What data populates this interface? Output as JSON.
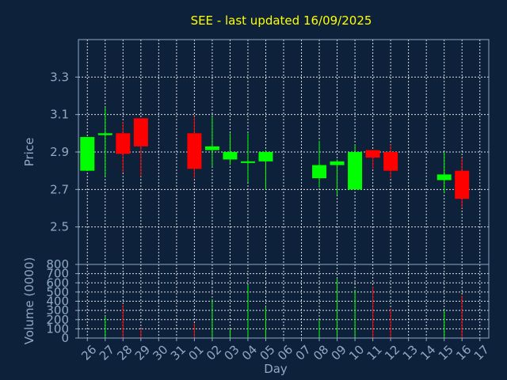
{
  "chart_data": {
    "type": "candlestick",
    "title": "SEE - last updated 16/09/2025",
    "xlabel": "Day",
    "ylabel_price": "Price",
    "ylabel_volume": "Volume (0000)",
    "x_ticks": [
      "26",
      "27",
      "28",
      "29",
      "30",
      "31",
      "01",
      "02",
      "03",
      "04",
      "05",
      "06",
      "07",
      "08",
      "09",
      "10",
      "11",
      "12",
      "13",
      "14",
      "15",
      "16",
      "17"
    ],
    "price_ticks": [
      2.5,
      2.7,
      2.9,
      3.1,
      3.3
    ],
    "price_range": [
      2.3,
      3.5
    ],
    "volume_ticks": [
      0,
      100,
      200,
      300,
      400,
      500,
      600,
      700,
      800
    ],
    "volume_range": [
      0,
      800
    ],
    "grid": true,
    "colors": {
      "up": "#00ff00",
      "down": "#ff0000",
      "title": "#ffff00",
      "axis": "#8fa9c6",
      "background": "#0e213a"
    },
    "candles": [
      {
        "day": "26",
        "open": 2.8,
        "high": 2.98,
        "low": 2.8,
        "close": 2.98,
        "volume": 0
      },
      {
        "day": "27",
        "open": 2.99,
        "high": 3.14,
        "low": 2.77,
        "close": 3.0,
        "volume": 240
      },
      {
        "day": "28",
        "open": 3.0,
        "high": 3.06,
        "low": 2.79,
        "close": 2.89,
        "volume": 360
      },
      {
        "day": "29",
        "open": 3.08,
        "high": 3.08,
        "low": 2.77,
        "close": 2.93,
        "volume": 100
      },
      {
        "day": "01",
        "open": 3.0,
        "high": 3.09,
        "low": 2.76,
        "close": 2.81,
        "volume": 160
      },
      {
        "day": "02",
        "open": 2.91,
        "high": 3.09,
        "low": 2.82,
        "close": 2.93,
        "volume": 420
      },
      {
        "day": "03",
        "open": 2.86,
        "high": 3.0,
        "low": 2.83,
        "close": 2.9,
        "volume": 100
      },
      {
        "day": "04",
        "open": 2.85,
        "high": 3.0,
        "low": 2.74,
        "close": 2.85,
        "volume": 580
      },
      {
        "day": "05",
        "open": 2.85,
        "high": 2.91,
        "low": 2.7,
        "close": 2.9,
        "volume": 340
      },
      {
        "day": "08",
        "open": 2.76,
        "high": 2.96,
        "low": 2.71,
        "close": 2.83,
        "volume": 200
      },
      {
        "day": "09",
        "open": 2.83,
        "high": 2.86,
        "low": 2.67,
        "close": 2.85,
        "volume": 650
      },
      {
        "day": "10",
        "open": 2.7,
        "high": 2.94,
        "low": 2.7,
        "close": 2.9,
        "volume": 520
      },
      {
        "day": "11",
        "open": 2.91,
        "high": 2.91,
        "low": 2.81,
        "close": 2.87,
        "volume": 560
      },
      {
        "day": "12",
        "open": 2.9,
        "high": 2.94,
        "low": 2.76,
        "close": 2.8,
        "volume": 320
      },
      {
        "day": "15",
        "open": 2.75,
        "high": 2.9,
        "low": 2.68,
        "close": 2.78,
        "volume": 300
      },
      {
        "day": "16",
        "open": 2.8,
        "high": 2.87,
        "low": 2.6,
        "close": 2.65,
        "volume": 460
      }
    ]
  }
}
